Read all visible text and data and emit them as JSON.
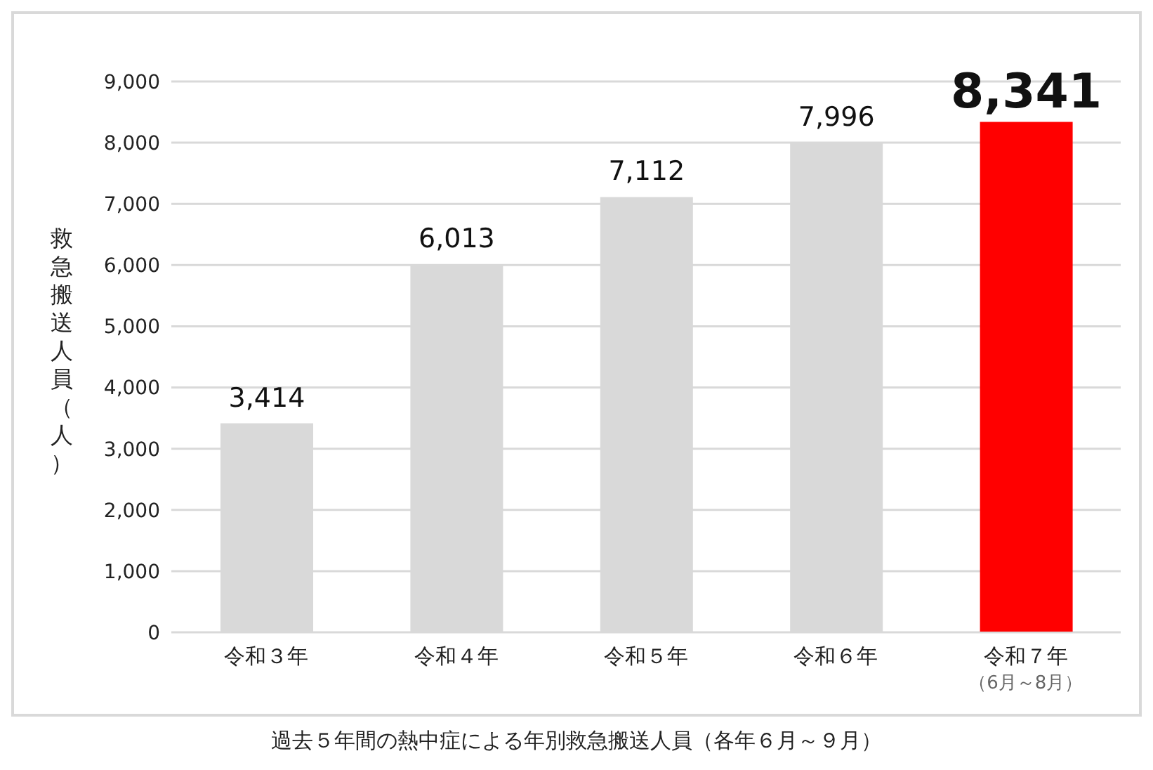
{
  "chart_data": {
    "type": "bar",
    "ylabel": "救急搬送人員（人）",
    "categories": [
      "令和３年",
      "令和４年",
      "令和５年",
      "令和６年",
      "令和７年"
    ],
    "values": [
      3414,
      6013,
      7112,
      7996,
      8341
    ],
    "colors": [
      "#d9d9d9",
      "#d9d9d9",
      "#d9d9d9",
      "#d9d9d9",
      "#ff0000"
    ],
    "value_labels": [
      "3,414",
      "6,013",
      "7,112",
      "7,996",
      "8,341"
    ],
    "ylim": [
      0,
      9000
    ],
    "yticks": [
      {
        "value": 0,
        "label": "0"
      },
      {
        "value": 1000,
        "label": "1,000"
      },
      {
        "value": 2000,
        "label": "2,000"
      },
      {
        "value": 3000,
        "label": "3,000"
      },
      {
        "value": 4000,
        "label": "4,000"
      },
      {
        "value": 5000,
        "label": "5,000"
      },
      {
        "value": 6000,
        "label": "6,000"
      },
      {
        "value": 7000,
        "label": "7,000"
      },
      {
        "value": 8000,
        "label": "8,000"
      },
      {
        "value": 9000,
        "label": "9,000"
      }
    ],
    "grid": "y",
    "legend": false,
    "annotations": [
      "（6月～8月）",
      "過去５年間の熱中症による年別救急搬送人員（各年６月～９月）"
    ]
  }
}
